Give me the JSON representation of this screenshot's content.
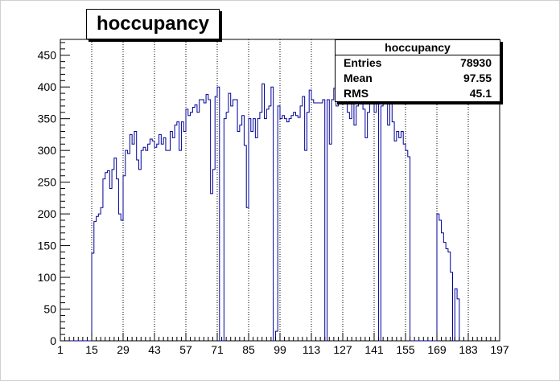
{
  "chart_data": {
    "type": "bar",
    "title": "hoccupancy",
    "xlabel": "",
    "ylabel": "",
    "xlim": [
      1,
      197
    ],
    "ylim": [
      0,
      475
    ],
    "x_ticks": [
      1,
      15,
      29,
      43,
      57,
      71,
      85,
      99,
      113,
      127,
      141,
      155,
      169,
      183,
      197
    ],
    "y_ticks": [
      0,
      50,
      100,
      150,
      200,
      250,
      300,
      350,
      400,
      450
    ],
    "grid": "vertical-dotted",
    "line_color": "#000099",
    "bin_width": 1,
    "values": [
      0,
      0,
      0,
      0,
      0,
      0,
      0,
      0,
      0,
      0,
      0,
      0,
      0,
      0,
      138,
      188,
      196,
      200,
      210,
      255,
      265,
      268,
      240,
      270,
      288,
      255,
      200,
      190,
      260,
      300,
      295,
      325,
      310,
      330,
      285,
      270,
      300,
      305,
      300,
      310,
      318,
      315,
      305,
      310,
      325,
      310,
      320,
      300,
      300,
      330,
      320,
      340,
      345,
      300,
      345,
      330,
      365,
      355,
      360,
      368,
      372,
      360,
      380,
      380,
      375,
      388,
      380,
      232,
      270,
      385,
      400,
      0,
      0,
      350,
      360,
      390,
      370,
      380,
      380,
      330,
      340,
      355,
      308,
      210,
      350,
      330,
      350,
      320,
      350,
      360,
      405,
      350,
      365,
      370,
      400,
      0,
      15,
      370,
      350,
      355,
      350,
      345,
      350,
      355,
      360,
      355,
      352,
      370,
      385,
      300,
      360,
      395,
      380,
      375,
      375,
      375,
      375,
      380,
      0,
      380,
      310,
      380,
      398,
      370,
      383,
      375,
      380,
      375,
      360,
      350,
      380,
      340,
      370,
      380,
      385,
      365,
      320,
      360,
      385,
      395,
      360,
      380,
      0,
      370,
      400,
      380,
      340,
      375,
      345,
      315,
      330,
      320,
      330,
      310,
      300,
      290,
      0,
      0,
      0,
      0,
      0,
      0,
      0,
      0,
      0,
      0,
      0,
      0,
      200,
      190,
      170,
      155,
      145,
      140,
      108,
      0,
      82,
      66,
      0
    ],
    "stats": {
      "title": "hoccupancy",
      "rows": [
        {
          "label": "Entries",
          "value": "78930"
        },
        {
          "label": "Mean",
          "value": "97.55"
        },
        {
          "label": "RMS",
          "value": "45.1"
        }
      ]
    }
  }
}
